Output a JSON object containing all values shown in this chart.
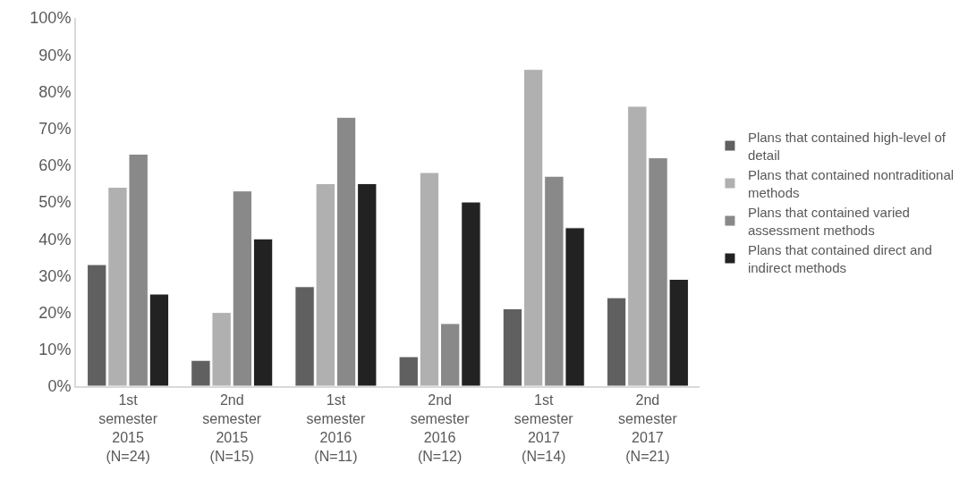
{
  "chart_data": {
    "type": "bar",
    "categories": [
      "1st semester 2015 (N=24)",
      "2nd semester 2015 (N=15)",
      "1st semester 2016 (N=11)",
      "2nd semester 2016 (N=12)",
      "1st semester 2017 (N=14)",
      "2nd semester 2017 (N=21)"
    ],
    "series": [
      {
        "name": "Plans that contained high-level of detail",
        "color": "#606060",
        "values": [
          33,
          7,
          27,
          8,
          21,
          24
        ]
      },
      {
        "name": "Plans that contained nontraditional methods",
        "color": "#b0b0b0",
        "values": [
          54,
          20,
          55,
          58,
          86,
          76
        ]
      },
      {
        "name": "Plans that contained varied assessment methods",
        "color": "#898989",
        "values": [
          63,
          53,
          73,
          17,
          57,
          62
        ]
      },
      {
        "name": "Plans that contained direct and indirect methods",
        "color": "#222222",
        "values": [
          25,
          40,
          55,
          50,
          43,
          29
        ]
      }
    ],
    "ylim": [
      0,
      100
    ],
    "yticks": [
      {
        "value": 0,
        "label": "0%"
      },
      {
        "value": 10,
        "label": "10%"
      },
      {
        "value": 20,
        "label": "20%"
      },
      {
        "value": 30,
        "label": "30%"
      },
      {
        "value": 40,
        "label": "40%"
      },
      {
        "value": 50,
        "label": "50%"
      },
      {
        "value": 60,
        "label": "60%"
      },
      {
        "value": 70,
        "label": "70%"
      },
      {
        "value": 80,
        "label": "80%"
      },
      {
        "value": 90,
        "label": "90%"
      },
      {
        "value": 100,
        "label": "100%"
      }
    ],
    "legend": "right"
  }
}
